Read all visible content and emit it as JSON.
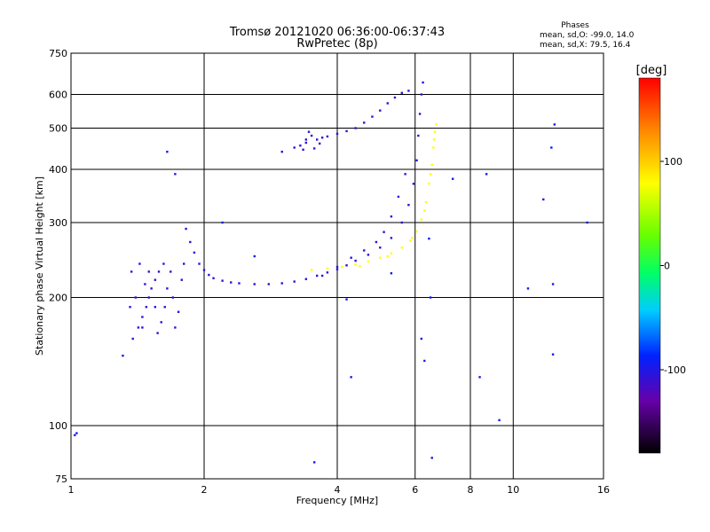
{
  "chart_data": {
    "type": "scatter",
    "title": "Tromsø 20121020 06:36:00-06:37:43",
    "subtitle": "RwPretec (8p)",
    "xlabel": "Frequency [MHz]",
    "ylabel": "Stationary phase Virtual Height [km]",
    "x_scale": "log",
    "y_scale": "log",
    "xlim": [
      1,
      16
    ],
    "ylim": [
      75,
      750
    ],
    "x_ticks": [
      1,
      2,
      4,
      6,
      8,
      10,
      16
    ],
    "y_ticks": [
      75,
      100,
      200,
      300,
      400,
      500,
      600,
      750
    ],
    "grid": true,
    "phase_box": {
      "header": "Phases",
      "line_o": "mean, sd,O: -99.0, 14.0",
      "line_x": "mean, sd,X: 79.5, 16.4"
    },
    "colorbar": {
      "unit": "[deg]",
      "range": [
        -180,
        180
      ],
      "ticks": [
        100,
        0,
        -100
      ]
    },
    "series": [
      {
        "mode": "O",
        "phase_deg": -105,
        "points": [
          [
            1.38,
            160
          ],
          [
            1.42,
            170
          ],
          [
            1.45,
            180
          ],
          [
            1.48,
            190
          ],
          [
            1.5,
            200
          ],
          [
            1.52,
            210
          ],
          [
            1.55,
            220
          ],
          [
            1.58,
            230
          ],
          [
            1.62,
            240
          ],
          [
            1.4,
            200
          ],
          [
            1.45,
            170
          ],
          [
            1.5,
            230
          ],
          [
            1.55,
            190
          ],
          [
            1.6,
            175
          ],
          [
            1.65,
            210
          ],
          [
            1.7,
            200
          ],
          [
            1.75,
            185
          ],
          [
            1.78,
            220
          ],
          [
            1.8,
            240
          ],
          [
            1.72,
            170
          ],
          [
            1.68,
            230
          ],
          [
            1.63,
            190
          ],
          [
            1.57,
            165
          ],
          [
            1.47,
            215
          ],
          [
            1.43,
            240
          ],
          [
            1.37,
            230
          ],
          [
            1.36,
            190
          ],
          [
            1.82,
            290
          ],
          [
            1.86,
            270
          ],
          [
            1.9,
            255
          ],
          [
            1.95,
            240
          ],
          [
            2.0,
            232
          ],
          [
            2.05,
            226
          ],
          [
            2.1,
            222
          ],
          [
            2.2,
            219
          ],
          [
            2.3,
            217
          ],
          [
            2.4,
            216
          ],
          [
            2.6,
            215
          ],
          [
            2.8,
            215
          ],
          [
            3.0,
            216
          ],
          [
            3.2,
            218
          ],
          [
            3.4,
            221
          ],
          [
            3.6,
            225
          ],
          [
            3.8,
            229
          ],
          [
            4.0,
            233
          ],
          [
            4.2,
            238
          ],
          [
            4.4,
            244
          ],
          [
            4.7,
            252
          ],
          [
            5.0,
            262
          ],
          [
            5.3,
            276
          ],
          [
            5.6,
            300
          ],
          [
            5.8,
            330
          ],
          [
            5.95,
            370
          ],
          [
            6.05,
            420
          ],
          [
            6.1,
            480
          ],
          [
            6.15,
            540
          ],
          [
            6.2,
            600
          ],
          [
            6.25,
            640
          ],
          [
            3.0,
            440
          ],
          [
            3.2,
            450
          ],
          [
            3.4,
            462
          ],
          [
            3.6,
            470
          ],
          [
            3.8,
            478
          ],
          [
            4.0,
            485
          ],
          [
            4.2,
            492
          ],
          [
            4.4,
            500
          ],
          [
            4.6,
            515
          ],
          [
            4.8,
            532
          ],
          [
            5.0,
            550
          ],
          [
            5.2,
            572
          ],
          [
            5.4,
            590
          ],
          [
            5.6,
            605
          ],
          [
            5.8,
            612
          ],
          [
            3.3,
            455
          ],
          [
            3.4,
            470
          ],
          [
            3.5,
            480
          ],
          [
            3.55,
            448
          ],
          [
            3.65,
            460
          ],
          [
            3.7,
            475
          ],
          [
            3.35,
            445
          ],
          [
            3.45,
            490
          ],
          [
            3.7,
            225
          ],
          [
            4.0,
            236
          ],
          [
            4.3,
            248
          ],
          [
            4.6,
            258
          ],
          [
            4.9,
            270
          ],
          [
            5.1,
            285
          ],
          [
            5.3,
            310
          ],
          [
            5.5,
            345
          ],
          [
            5.7,
            390
          ]
        ]
      },
      {
        "mode": "X",
        "phase_deg": 80,
        "points": [
          [
            3.5,
            232
          ],
          [
            3.8,
            234
          ],
          [
            4.1,
            236
          ],
          [
            4.4,
            239
          ],
          [
            4.7,
            243
          ],
          [
            5.0,
            248
          ],
          [
            5.3,
            254
          ],
          [
            5.6,
            262
          ],
          [
            5.85,
            272
          ],
          [
            6.05,
            286
          ],
          [
            6.2,
            305
          ],
          [
            6.35,
            335
          ],
          [
            6.45,
            370
          ],
          [
            6.55,
            410
          ],
          [
            6.6,
            450
          ],
          [
            6.65,
            490
          ],
          [
            6.7,
            510
          ],
          [
            4.5,
            237
          ],
          [
            5.2,
            250
          ],
          [
            5.9,
            276
          ],
          [
            6.3,
            320
          ],
          [
            6.5,
            390
          ],
          [
            6.62,
            470
          ]
        ]
      },
      {
        "mode": "noise",
        "phase_deg": -95,
        "points": [
          [
            1.02,
            95
          ],
          [
            1.03,
            96
          ],
          [
            1.31,
            146
          ],
          [
            1.65,
            440
          ],
          [
            1.72,
            390
          ],
          [
            2.2,
            300
          ],
          [
            2.6,
            250
          ],
          [
            3.55,
            82
          ],
          [
            4.2,
            198
          ],
          [
            4.3,
            130
          ],
          [
            5.3,
            228
          ],
          [
            6.2,
            160
          ],
          [
            6.3,
            142
          ],
          [
            6.5,
            200
          ],
          [
            6.55,
            84
          ],
          [
            6.45,
            275
          ],
          [
            7.3,
            380
          ],
          [
            8.4,
            130
          ],
          [
            8.7,
            390
          ],
          [
            9.3,
            103
          ],
          [
            10.8,
            210
          ],
          [
            11.7,
            340
          ],
          [
            12.2,
            450
          ],
          [
            12.3,
            215
          ],
          [
            12.3,
            147
          ],
          [
            12.4,
            510
          ],
          [
            14.7,
            300
          ]
        ]
      }
    ]
  }
}
